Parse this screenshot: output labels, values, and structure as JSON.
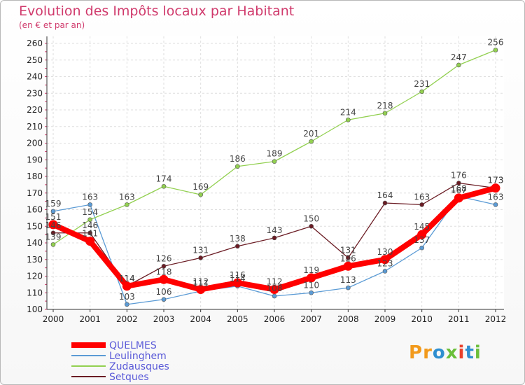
{
  "chart_data": {
    "type": "line",
    "title": "Evolution des Impôts locaux par Habitant",
    "subtitle": "(en € et par an)",
    "x": [
      "2000",
      "2001",
      "2002",
      "2003",
      "2004",
      "2005",
      "2006",
      "2007",
      "2008",
      "2009",
      "2010",
      "2011",
      "2012"
    ],
    "ylim": [
      100,
      260
    ],
    "yticks": [
      100,
      110,
      120,
      130,
      140,
      150,
      160,
      170,
      180,
      190,
      200,
      210,
      220,
      230,
      240,
      250,
      260
    ],
    "grid": true,
    "legend_position": "bottom-left",
    "series": [
      {
        "name": "Leulinghem",
        "color": "#5b9bd5",
        "values": [
          159,
          163,
          103,
          106,
          111,
          114,
          108,
          110,
          113,
          123,
          137,
          168,
          163
        ]
      },
      {
        "name": "Zudausques",
        "color": "#92d050",
        "values": [
          139,
          154,
          163,
          174,
          169,
          186,
          189,
          201,
          214,
          218,
          231,
          247,
          256
        ]
      },
      {
        "name": "Setques",
        "color": "#6b1c24",
        "values": [
          146,
          146,
          114,
          126,
          131,
          138,
          143,
          150,
          131,
          164,
          163,
          176,
          173
        ]
      },
      {
        "name": "QUELMES",
        "color": "#ff0000",
        "values": [
          151,
          141,
          114,
          118,
          112,
          116,
          112,
          119,
          126,
          130,
          145,
          167,
          173
        ]
      }
    ],
    "legend_order": [
      "QUELMES",
      "Leulinghem",
      "Zudausques",
      "Setques"
    ],
    "label_value_lists": [
      [
        "159",
        "163",
        "103",
        "106",
        "111",
        "114",
        "108",
        "110",
        "113",
        "123",
        "137",
        "168",
        "163"
      ],
      [
        "139",
        "154",
        "163",
        "174",
        "169",
        "186",
        "189",
        "201",
        "214",
        "218",
        "231",
        "247",
        "256"
      ],
      [
        "146",
        "146",
        "114",
        "126",
        "131",
        "138",
        "143",
        "150",
        "131",
        "164",
        "163",
        "176",
        "173"
      ],
      [
        "151",
        "141",
        "114",
        "118",
        "112",
        "116",
        "112",
        "119",
        "126",
        "130",
        "145",
        "167",
        "173"
      ]
    ]
  },
  "brand": {
    "logo_letters": [
      "P",
      "r",
      "o",
      "x",
      "i",
      "t",
      "i"
    ],
    "logo_colors": [
      "#f29a1c",
      "#f29a1c",
      "#2f8fd0",
      "#6bbf3a",
      "#e8412c",
      "#2f8fd0",
      "#6bbf3a"
    ]
  }
}
